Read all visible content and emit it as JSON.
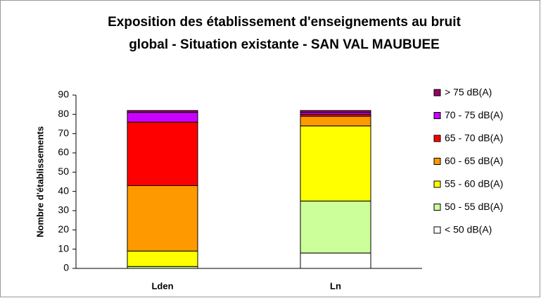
{
  "chart_data": {
    "type": "stacked_bar",
    "title": [
      "Exposition des établissement d'enseignements au bruit",
      "global - Situation existante - SAN VAL MAUBUEE"
    ],
    "y_label": "Nombre d'établissements",
    "categories": [
      "Lden",
      "Ln"
    ],
    "series": [
      {
        "name": "< 50 dB(A)",
        "color": "#ffffff",
        "values": [
          0,
          8
        ]
      },
      {
        "name": "50 - 55 dB(A)",
        "color": "#ccff99",
        "values": [
          1,
          27
        ]
      },
      {
        "name": "55 - 60 dB(A)",
        "color": "#ffff00",
        "values": [
          8,
          39
        ]
      },
      {
        "name": "60 - 65 dB(A)",
        "color": "#ff9900",
        "values": [
          34,
          5
        ]
      },
      {
        "name": "65 - 70 dB(A)",
        "color": "#ff0000",
        "values": [
          33,
          1
        ]
      },
      {
        "name": "70 - 75 dB(A)",
        "color": "#cc00ff",
        "values": [
          5,
          1
        ]
      },
      {
        "name": "> 75 dB(A)",
        "color": "#990066",
        "values": [
          1,
          1
        ]
      }
    ],
    "ylim": [
      0,
      90
    ],
    "yticks": [
      0,
      10,
      20,
      30,
      40,
      50,
      60,
      70,
      80,
      90
    ],
    "grid": false,
    "legend": "right"
  }
}
